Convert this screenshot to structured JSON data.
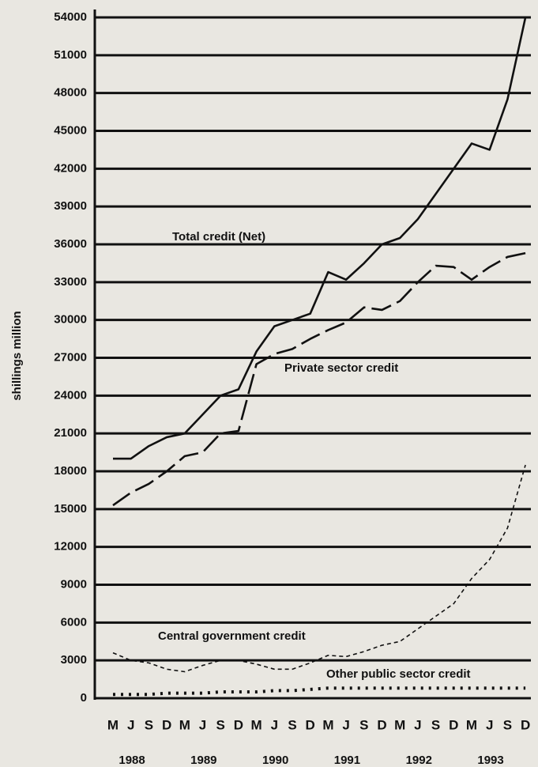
{
  "chart_data": {
    "type": "line",
    "y_label": "shillings million",
    "categories": [
      "M",
      "J",
      "S",
      "D",
      "M",
      "J",
      "S",
      "D",
      "M",
      "J",
      "S",
      "D",
      "M",
      "J",
      "S",
      "D",
      "M",
      "J",
      "S",
      "D",
      "M",
      "J",
      "S",
      "D"
    ],
    "year_labels": [
      "1988",
      "1989",
      "1990",
      "1991",
      "1992",
      "1993"
    ],
    "series": [
      {
        "name": "Total credit (Net)",
        "color": "#111111",
        "style": "solid",
        "values": [
          19000,
          19000,
          20000,
          20700,
          21000,
          22500,
          24000,
          24500,
          27500,
          29500,
          30000,
          30500,
          33800,
          33200,
          34500,
          36000,
          36500,
          38000,
          40000,
          42000,
          44000,
          43500,
          47500,
          54000
        ]
      },
      {
        "name": "Private sector credit",
        "color": "#111111",
        "style": "longdash",
        "values": [
          15300,
          16300,
          17000,
          18000,
          19200,
          19500,
          21000,
          21200,
          26500,
          27300,
          27700,
          28500,
          29200,
          29800,
          31000,
          30800,
          31500,
          33000,
          34300,
          34200,
          33200,
          34200,
          35000,
          35300
        ]
      },
      {
        "name": "Central government credit",
        "color": "#111111",
        "style": "dash",
        "values": [
          3600,
          3000,
          2800,
          2300,
          2100,
          2600,
          3000,
          3000,
          2700,
          2300,
          2300,
          2800,
          3400,
          3300,
          3700,
          4200,
          4500,
          5500,
          6500,
          7500,
          9500,
          11000,
          13500,
          18500
        ]
      },
      {
        "name": "Other public sector credit",
        "color": "#111111",
        "style": "ticks",
        "values": [
          300,
          300,
          300,
          400,
          400,
          400,
          500,
          500,
          500,
          600,
          600,
          700,
          800,
          800,
          800,
          800,
          800,
          800,
          800,
          800,
          800,
          800,
          800,
          800
        ]
      }
    ],
    "ylim": [
      0,
      54000
    ],
    "yticks": [
      0,
      3000,
      6000,
      9000,
      12000,
      15000,
      18000,
      21000,
      24000,
      27000,
      30000,
      33000,
      36000,
      39000,
      42000,
      45000,
      48000,
      51000,
      54000
    ],
    "grid": true
  }
}
